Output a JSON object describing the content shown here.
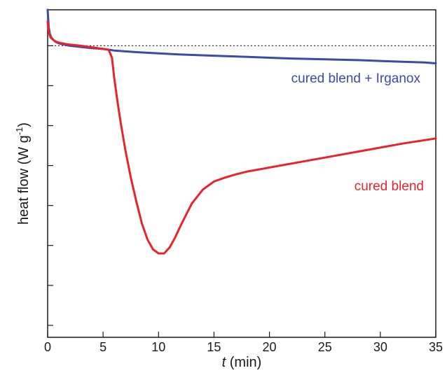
{
  "chart_data": {
    "type": "line",
    "xlabel_var": "t",
    "xlabel_unit": " (min)",
    "ylabel_main": "heat flow (W g",
    "ylabel_sup": "-1",
    "ylabel_close": ")",
    "xlim": [
      0,
      35
    ],
    "ylim": [
      -7.3,
      0.9
    ],
    "x_ticks": [
      0,
      5,
      10,
      15,
      20,
      25,
      30,
      35
    ],
    "x_tick_labels": [
      "0",
      "5",
      "10",
      "15",
      "20",
      "25",
      "30",
      "35"
    ],
    "y_ticks": [
      0,
      -1,
      -2,
      -3,
      -4,
      -5,
      -6,
      -7
    ],
    "y_tick_labels_shown": false,
    "reference_line": {
      "y": 0,
      "style": "dotted"
    },
    "grid": false,
    "colors": {
      "blend": "#e8232b",
      "irganox": "#3c4aa8",
      "axis": "#1a1a1a",
      "reference": "#333333"
    },
    "series": [
      {
        "name": "cured blend + Irganox",
        "color": "#3c4aa8",
        "x": [
          0,
          0.1,
          0.2,
          0.3,
          0.5,
          0.7,
          1.0,
          1.5,
          2,
          3,
          4,
          5,
          6,
          8,
          10,
          12,
          15,
          18,
          20,
          22,
          25,
          28,
          30,
          32,
          34,
          35
        ],
        "y": [
          0.9,
          0.45,
          0.3,
          0.22,
          0.15,
          0.1,
          0.06,
          0.03,
          0.0,
          -0.03,
          -0.06,
          -0.08,
          -0.12,
          -0.16,
          -0.19,
          -0.22,
          -0.25,
          -0.28,
          -0.3,
          -0.32,
          -0.34,
          -0.36,
          -0.38,
          -0.4,
          -0.42,
          -0.44
        ]
      },
      {
        "name": "cured blend",
        "color": "#e8232b",
        "x": [
          0,
          0.1,
          0.2,
          0.3,
          0.5,
          0.7,
          1.0,
          1.5,
          2,
          3,
          4,
          5,
          5.5,
          5.8,
          6.0,
          6.3,
          6.6,
          7.0,
          7.5,
          8.0,
          8.5,
          9.0,
          9.5,
          10.0,
          10.5,
          11.0,
          11.5,
          12.0,
          13.0,
          14.0,
          15.0,
          16.0,
          17.0,
          18.0,
          20.0,
          22.0,
          25.0,
          28.0,
          30.0,
          32.0,
          35.0
        ],
        "y": [
          0.6,
          0.35,
          0.25,
          0.2,
          0.15,
          0.11,
          0.08,
          0.05,
          0.03,
          0.0,
          -0.04,
          -0.08,
          -0.1,
          -0.3,
          -0.8,
          -1.4,
          -1.95,
          -2.6,
          -3.3,
          -3.9,
          -4.45,
          -4.85,
          -5.1,
          -5.2,
          -5.2,
          -5.05,
          -4.8,
          -4.5,
          -3.95,
          -3.6,
          -3.4,
          -3.3,
          -3.22,
          -3.15,
          -3.05,
          -2.95,
          -2.8,
          -2.65,
          -2.55,
          -2.45,
          -2.32
        ]
      }
    ]
  }
}
